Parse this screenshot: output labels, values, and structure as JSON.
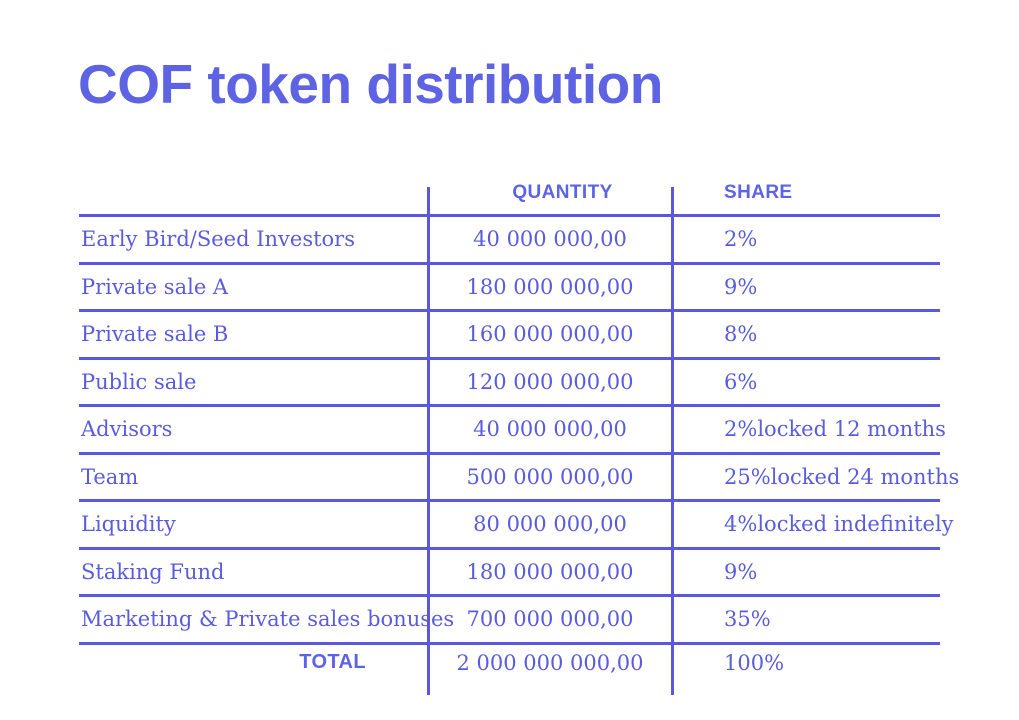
{
  "page": {
    "title": "COF token distribution"
  },
  "colors": {
    "accent": "#5d63e6",
    "text": "#5a5cdd",
    "line": "#5a58df",
    "title": "#5e63e4",
    "bg": "#ffffff"
  },
  "table": {
    "headers": {
      "category": "",
      "quantity": "QUANTITY",
      "share": "SHARE"
    },
    "rows": [
      {
        "label": "Early Bird/Seed Investors",
        "quantity": "40 000 000,00",
        "share": "2%",
        "note": ""
      },
      {
        "label": "Private sale A",
        "quantity": "180 000 000,00",
        "share": "9%",
        "note": ""
      },
      {
        "label": "Private sale B",
        "quantity": "160 000 000,00",
        "share": "8%",
        "note": ""
      },
      {
        "label": "Public sale",
        "quantity": "120 000 000,00",
        "share": "6%",
        "note": ""
      },
      {
        "label": "Advisors",
        "quantity": "40 000 000,00",
        "share": "2%",
        "note": "locked 12 months"
      },
      {
        "label": "Team",
        "quantity": "500 000 000,00",
        "share": "25%",
        "note": "locked 24 months"
      },
      {
        "label": "Liquidity",
        "quantity": "80 000 000,00",
        "share": "4%",
        "note": "locked indefinitely"
      },
      {
        "label": "Staking Fund",
        "quantity": "180 000 000,00",
        "share": "9%",
        "note": ""
      },
      {
        "label": "Marketing & Private sales bonuses",
        "quantity": "700 000 000,00",
        "share": "35%",
        "note": ""
      }
    ],
    "total": {
      "label": "TOTAL",
      "quantity": "2 000 000 000,00",
      "share": "100%"
    }
  },
  "chart_data": {
    "type": "table",
    "title": "COF token distribution",
    "columns": [
      "",
      "QUANTITY",
      "SHARE"
    ],
    "rows": [
      {
        "category": "Early Bird/Seed Investors",
        "quantity": 40000000,
        "share_pct": 2,
        "note": ""
      },
      {
        "category": "Private sale A",
        "quantity": 180000000,
        "share_pct": 9,
        "note": ""
      },
      {
        "category": "Private sale B",
        "quantity": 160000000,
        "share_pct": 8,
        "note": ""
      },
      {
        "category": "Public sale",
        "quantity": 120000000,
        "share_pct": 6,
        "note": ""
      },
      {
        "category": "Advisors",
        "quantity": 40000000,
        "share_pct": 2,
        "note": "locked 12 months"
      },
      {
        "category": "Team",
        "quantity": 500000000,
        "share_pct": 25,
        "note": "locked 24 months"
      },
      {
        "category": "Liquidity",
        "quantity": 80000000,
        "share_pct": 4,
        "note": "locked indefinitely"
      },
      {
        "category": "Staking Fund",
        "quantity": 180000000,
        "share_pct": 9,
        "note": ""
      },
      {
        "category": "Marketing & Private sales bonuses",
        "quantity": 700000000,
        "share_pct": 35,
        "note": ""
      }
    ],
    "total": {
      "category": "TOTAL",
      "quantity": 2000000000,
      "share_pct": 100
    }
  }
}
